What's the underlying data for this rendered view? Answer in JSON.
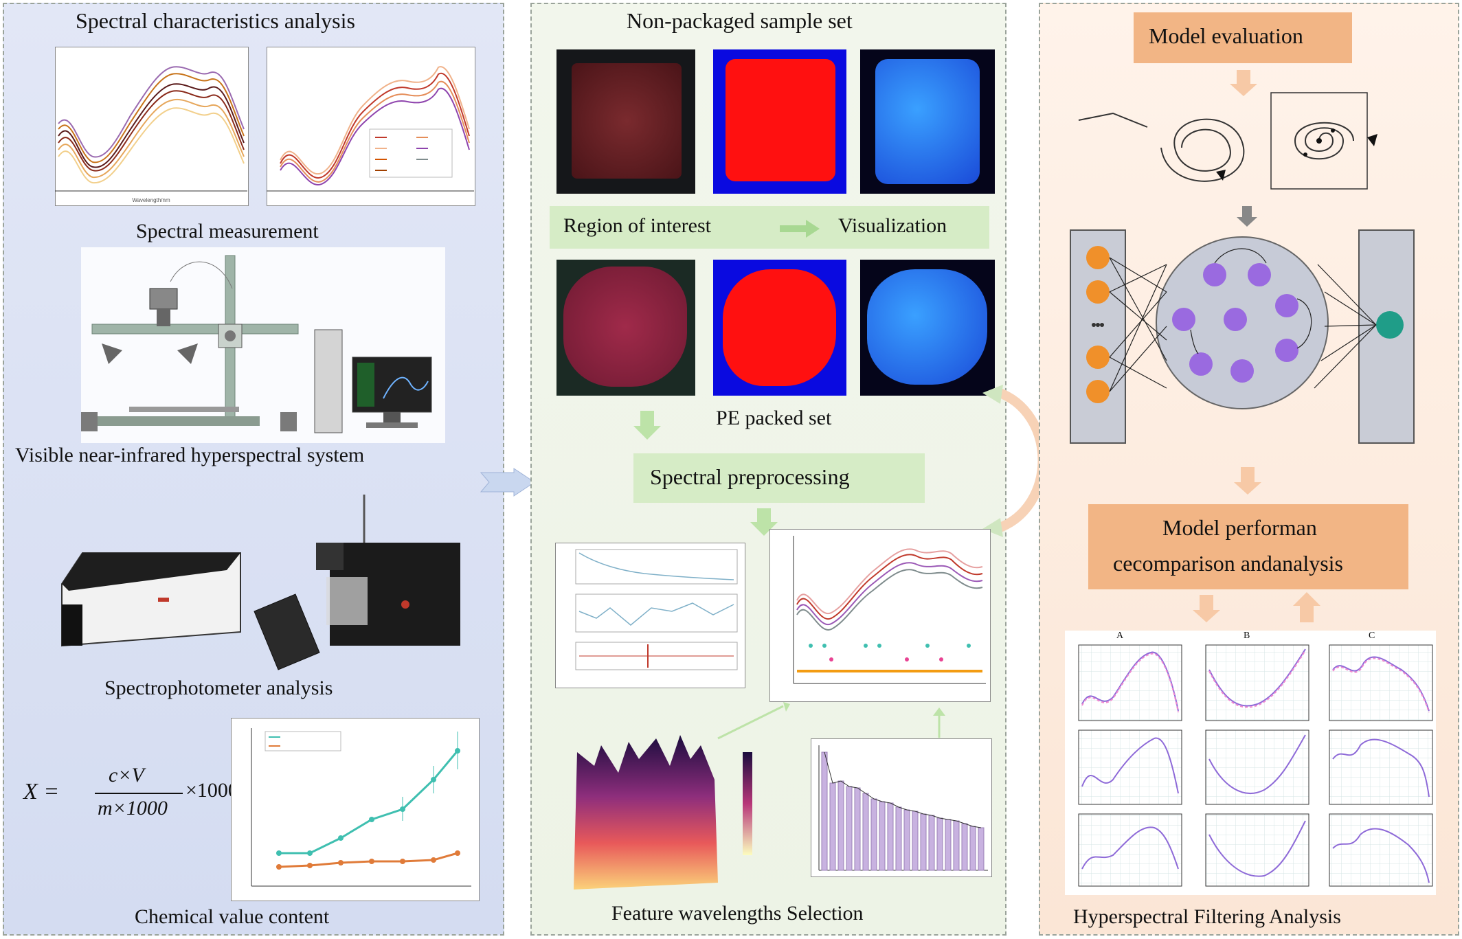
{
  "left_panel": {
    "title": "Spectral characteristics analysis",
    "spectral_measurement": "Spectral measurement",
    "hyperspectral_system": "Visible near-infrared hyperspectral system",
    "spectrophotometer": "Spectrophotometer analysis",
    "chemical_value": "Chemical value content",
    "formula": {
      "lhs": "X =",
      "numerator": "c×V",
      "denominator": "m×1000",
      "factor": "×1000"
    }
  },
  "middle_panel": {
    "title": "Non-packaged sample set",
    "roi_label": "Region of interest",
    "visualization_label": "Visualization",
    "pe_label": "PE packed set",
    "preprocessing_label": "Spectral preprocessing",
    "feature_label": "Feature wavelengths Selection"
  },
  "right_panel": {
    "model_evaluation": "Model evaluation",
    "performance_line1": "Model performan",
    "performance_line2": "cecomparison andanalysis",
    "filtering_label": "Hyperspectral Filtering Analysis",
    "subplot_letters": [
      "A",
      "B",
      "C"
    ]
  },
  "colors": {
    "left_bg": "#d8e0f3",
    "middle_bg": "#eff5e9",
    "right_bg": "#fcebdc",
    "green_box": "#d6ecc6",
    "orange_box": "#f2b585",
    "arrow_green": "#bde3a8",
    "arrow_orange": "#f7c9a6",
    "input_node": "#f0902a",
    "reservoir_node": "#9a6ae0",
    "output_node": "#1f9d88"
  },
  "icons": [
    "camera-icon",
    "light-source-icon",
    "computer-icon",
    "spectrophotometer-icon",
    "tablet-icon"
  ]
}
